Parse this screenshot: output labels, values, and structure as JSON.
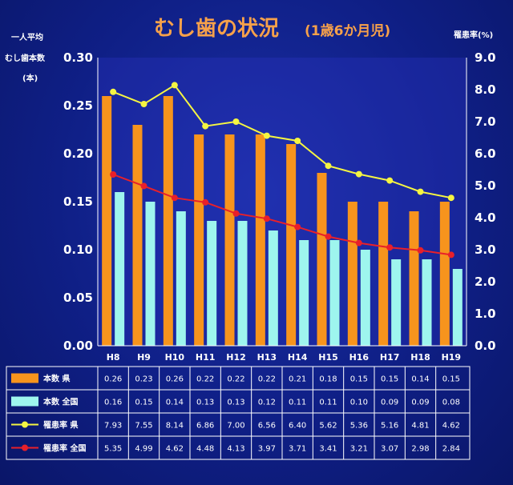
{
  "chart_data": {
    "type": "bar",
    "title": "むし歯の状況",
    "subtitle": "(1歳6か月児)",
    "ylabel_left": [
      "一人平均",
      "むし歯本数",
      "(本)"
    ],
    "ylabel_right": "罹患率(%)",
    "categories": [
      "H8",
      "H9",
      "H10",
      "H11",
      "H12",
      "H13",
      "H14",
      "H15",
      "H16",
      "H17",
      "H18",
      "H19"
    ],
    "ylim_left": [
      0,
      0.3
    ],
    "ylim_right": [
      0,
      9
    ],
    "yticks_left": [
      "0.00",
      "0.05",
      "0.10",
      "0.15",
      "0.20",
      "0.25",
      "0.30"
    ],
    "yticks_right": [
      "0.0",
      "1.0",
      "2.0",
      "3.0",
      "4.0",
      "5.0",
      "6.0",
      "7.0",
      "8.0",
      "9.0"
    ],
    "series": [
      {
        "name": "本数 県",
        "kind": "bar",
        "axis": "left",
        "color": "#f7941d",
        "values": [
          0.26,
          0.23,
          0.26,
          0.22,
          0.22,
          0.22,
          0.21,
          0.18,
          0.15,
          0.15,
          0.14,
          0.15
        ],
        "labels": [
          "0.26",
          "0.23",
          "0.26",
          "0.22",
          "0.22",
          "0.22",
          "0.21",
          "0.18",
          "0.15",
          "0.15",
          "0.14",
          "0.15"
        ]
      },
      {
        "name": "本数 全国",
        "kind": "bar",
        "axis": "left",
        "color": "#9ef5ee",
        "values": [
          0.16,
          0.15,
          0.14,
          0.13,
          0.13,
          0.12,
          0.11,
          0.11,
          0.1,
          0.09,
          0.09,
          0.08
        ],
        "labels": [
          "0.16",
          "0.15",
          "0.14",
          "0.13",
          "0.13",
          "0.12",
          "0.11",
          "0.11",
          "0.10",
          "0.09",
          "0.09",
          "0.08"
        ]
      },
      {
        "name": "罹患率 県",
        "kind": "line",
        "axis": "right",
        "color": "#f5f542",
        "values": [
          7.93,
          7.55,
          8.14,
          6.86,
          7.0,
          6.56,
          6.4,
          5.62,
          5.36,
          5.16,
          4.81,
          4.62
        ],
        "labels": [
          "7.93",
          "7.55",
          "8.14",
          "6.86",
          "7.00",
          "6.56",
          "6.40",
          "5.62",
          "5.36",
          "5.16",
          "4.81",
          "4.62"
        ]
      },
      {
        "name": "罹患率 全国",
        "kind": "line",
        "axis": "right",
        "color": "#e8202a",
        "values": [
          5.35,
          4.99,
          4.62,
          4.48,
          4.13,
          3.97,
          3.71,
          3.41,
          3.21,
          3.07,
          2.98,
          2.84
        ],
        "labels": [
          "5.35",
          "4.99",
          "4.62",
          "4.48",
          "4.13",
          "3.97",
          "3.71",
          "3.41",
          "3.21",
          "3.07",
          "2.98",
          "2.84"
        ]
      }
    ]
  }
}
